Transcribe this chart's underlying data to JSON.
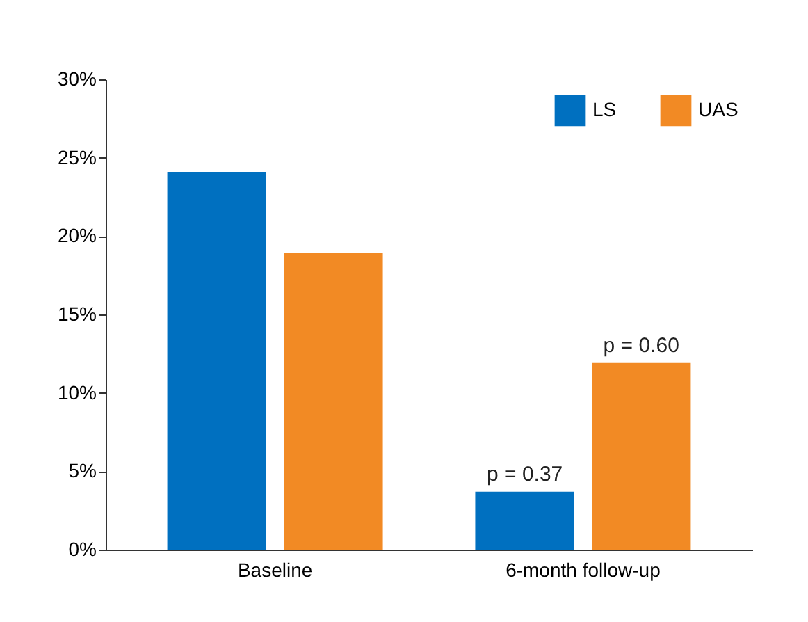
{
  "chart_data": {
    "type": "bar",
    "categories": [
      "Baseline",
      "6-month follow-up"
    ],
    "series": [
      {
        "name": "LS",
        "color": "#0070c0",
        "values": [
          24.1,
          3.7
        ]
      },
      {
        "name": "UAS",
        "color": "#f28a24",
        "values": [
          18.9,
          11.9
        ]
      }
    ],
    "annotations": [
      "p = 0.37",
      "p = 0.60"
    ],
    "ylim": [
      0,
      30
    ],
    "yticks": [
      {
        "value": 0,
        "label": "0%"
      },
      {
        "value": 5,
        "label": "5%"
      },
      {
        "value": 10,
        "label": "10%"
      },
      {
        "value": 15,
        "label": "15%"
      },
      {
        "value": 20,
        "label": "20%"
      },
      {
        "value": 25,
        "label": "25%"
      },
      {
        "value": 30,
        "label": "30%"
      }
    ],
    "legend": "top right",
    "grid": false
  }
}
